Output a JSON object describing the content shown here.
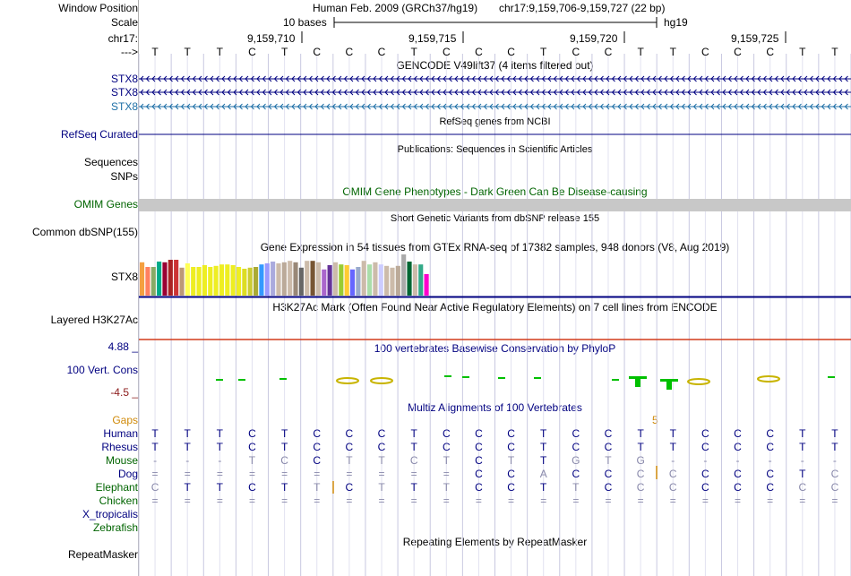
{
  "labels": {
    "window_position": "Window Position",
    "scale": "Scale",
    "chrom": "chr17:",
    "arrow": "--->",
    "stx8_1": "STX8",
    "stx8_2": "STX8",
    "stx8_3": "STX8",
    "refseq": "RefSeq Curated",
    "sequences": "Sequences",
    "snps": "SNPs",
    "omim": "OMIM Genes",
    "dbsnp": "Common dbSNP(155)",
    "gtex_gene": "STX8",
    "h3k27ac": "Layered H3K27Ac",
    "phylop_max": "4.88 _",
    "phylop_name": "100 Vert. Cons",
    "phylop_min": "-4.5 _",
    "gaps": "Gaps",
    "species": [
      {
        "name": "Human",
        "color": "#000080"
      },
      {
        "name": "Rhesus",
        "color": "#000080"
      },
      {
        "name": "Mouse",
        "color": "#006400"
      },
      {
        "name": "Dog",
        "color": "#000080"
      },
      {
        "name": "Elephant",
        "color": "#006400"
      },
      {
        "name": "Chicken",
        "color": "#006400"
      },
      {
        "name": "X_tropicalis",
        "color": "#000080"
      },
      {
        "name": "Zebrafish",
        "color": "#006400"
      }
    ],
    "repeatmasker": "RepeatMasker"
  },
  "header": {
    "assembly": "Human Feb. 2009 (GRCh37/hg19)",
    "position": "chr17:9,159,706-9,159,727 (22 bp)",
    "scale_text": "10 bases",
    "scale_db": "hg19",
    "ticks": [
      "9,159,710",
      "9,159,715",
      "9,159,720",
      "9,159,725"
    ]
  },
  "sequence": [
    "T",
    "T",
    "T",
    "C",
    "T",
    "C",
    "C",
    "C",
    "T",
    "C",
    "C",
    "C",
    "T",
    "C",
    "C",
    "T",
    "T",
    "C",
    "C",
    "C",
    "T",
    "T"
  ],
  "tracks": {
    "gencode_title": "GENCODE V49lift37 (4 items filtered out)",
    "refseq_title": "RefSeq genes from NCBI",
    "pubs_title": "Publications: Sequences in Scientific Articles",
    "omim_title": "OMIM Gene Phenotypes - Dark Green Can Be Disease-causing",
    "dbsnp_title": "Short Genetic Variants from dbSNP release 155",
    "gtex_title": "Gene Expression in 54 tissues from GTEx RNA-seq of 17382 samples, 948 donors (V8, Aug 2019)",
    "h3k27ac_title": "H3K27Ac Mark (Often Found Near Active Regulatory Elements) on 7 cell lines from ENCODE",
    "phylop_title": "100 vertebrates Basewise Conservation by PhyloP",
    "multiz_title": "Multiz Alignments of 100 Vertebrates",
    "gap_count": "5",
    "repeat_title": "Repeating Elements by RepeatMasker"
  },
  "alignment": {
    "Human": [
      "T",
      "T",
      "T",
      "C",
      "T",
      "C",
      "C",
      "C",
      "T",
      "C",
      "C",
      "C",
      "T",
      "C",
      "C",
      "T",
      "T",
      "C",
      "C",
      "C",
      "T",
      "T"
    ],
    "Rhesus": [
      "T",
      "T",
      "T",
      "C",
      "T",
      "C",
      "C",
      "C",
      "T",
      "C",
      "C",
      "C",
      "T",
      "C",
      "C",
      "T",
      "T",
      "C",
      "C",
      "C",
      "T",
      "T"
    ],
    "Mouse": [
      "-",
      "-",
      "-",
      "T",
      "C",
      "C",
      "T",
      "T",
      "C",
      "T",
      "C",
      "T",
      "T",
      "G",
      "T",
      "G",
      "-",
      "-",
      "-",
      "-",
      "-",
      "-"
    ],
    "Dog": [
      "=",
      "=",
      "=",
      "=",
      "=",
      "=",
      "=",
      "=",
      "=",
      "=",
      "C",
      "C",
      "A",
      "C",
      "C",
      "C",
      "C",
      "C",
      "C",
      "C",
      "T",
      "C"
    ],
    "Elephant": [
      "C",
      "T",
      "T",
      "C",
      "T",
      "T",
      "C",
      "T",
      "T",
      "T",
      "C",
      "C",
      "T",
      "T",
      "C",
      "C",
      "C",
      "C",
      "C",
      "C",
      "C",
      "C"
    ],
    "Chicken": [
      "=",
      "=",
      "=",
      "=",
      "=",
      "=",
      "=",
      "=",
      "=",
      "=",
      "=",
      "=",
      "=",
      "=",
      "=",
      "=",
      "=",
      "=",
      "=",
      "=",
      "=",
      "="
    ]
  },
  "gtex_colors": [
    "#f4a040",
    "#ff8060",
    "#88aa66",
    "#00aa88",
    "#990033",
    "#aa2222",
    "#cc3333",
    "#bb9977",
    "#ffff55",
    "#eeee22",
    "#eeee22",
    "#eeee22",
    "#eeee22",
    "#eeee22",
    "#eeee22",
    "#eeee22",
    "#eeee22",
    "#eeee22",
    "#dddd22",
    "#cccc33",
    "#aaaa33",
    "#3399ff",
    "#9999ff",
    "#aaaadd",
    "#ccbbaa",
    "#bbaa99",
    "#ccbbaa",
    "#998877",
    "#666666",
    "#ccbbaa",
    "#775533",
    "#ccbbaa",
    "#aa66cc",
    "#663399",
    "#ccbbaa",
    "#99cc33",
    "#ffcc33",
    "#6666ff",
    "#99aacc",
    "#ccbbaa",
    "#aaddaa",
    "#ccbbaa",
    "#ccccff",
    "#ccbbaa",
    "#ccbbaa",
    "#bbaa99",
    "#aaaaaa",
    "#006633",
    "#ccbbaa",
    "#33aa88",
    "#ff00cc"
  ],
  "gtex_values": [
    0.93,
    0.8,
    0.8,
    0.95,
    0.93,
    1.0,
    1.0,
    0.78,
    0.9,
    0.8,
    0.8,
    0.85,
    0.8,
    0.83,
    0.87,
    0.87,
    0.85,
    0.8,
    0.75,
    0.78,
    0.8,
    0.87,
    0.9,
    0.95,
    0.9,
    0.93,
    0.97,
    0.93,
    0.78,
    0.97,
    0.97,
    0.93,
    0.73,
    0.85,
    0.93,
    0.87,
    0.85,
    0.73,
    0.8,
    0.97,
    0.87,
    0.93,
    0.87,
    0.83,
    0.78,
    0.83,
    1.15,
    0.95,
    0.87,
    0.87,
    0.6
  ]
}
